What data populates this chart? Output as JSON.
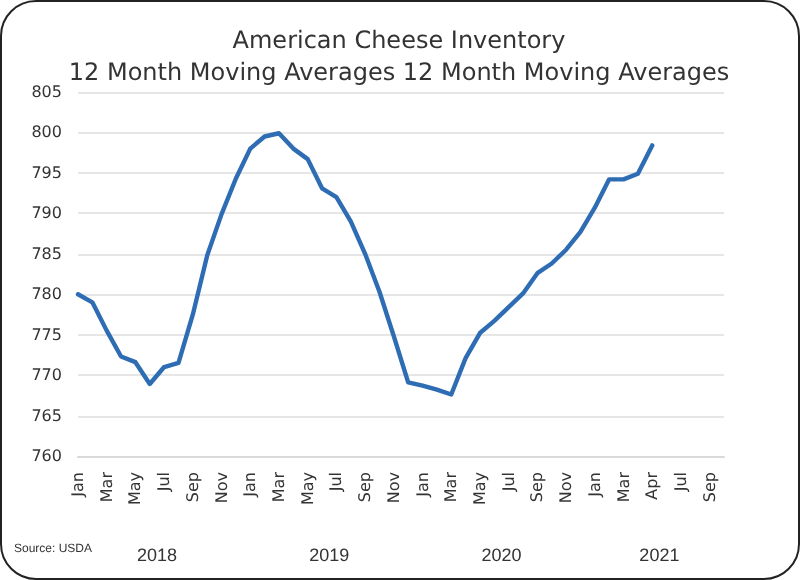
{
  "chart_data": {
    "type": "line",
    "title": "American Cheese Inventory\n12 Month Moving Averages 12 Month Moving Averages",
    "categories": [
      "Jan",
      null,
      "Mar",
      null,
      "May",
      null,
      "Jul",
      null,
      "Sep",
      null,
      "Nov",
      null,
      "Jan",
      null,
      "Mar",
      null,
      "May",
      null,
      "Jul",
      null,
      "Sep",
      null,
      "Nov",
      null,
      "Jan",
      null,
      "Mar",
      null,
      "May",
      null,
      "Jul",
      null,
      "Sep",
      null,
      "Nov",
      null,
      "Jan",
      null,
      "Mar",
      null,
      "Apr",
      null,
      "Jul",
      null,
      "Sep",
      null
    ],
    "series": [
      {
        "color": "#2e6db4",
        "values": [
          780,
          779,
          775.5,
          772.3,
          771.6,
          768.9,
          771,
          771.5,
          777.5,
          784.8,
          789.9,
          794.3,
          798,
          799.5,
          799.9,
          798,
          796.7,
          793.1,
          792,
          789,
          785,
          780.3,
          774.8,
          769.1,
          768.7,
          768.2,
          767.6,
          772.1,
          775.2,
          776.7,
          778.4,
          780.1,
          782.6,
          783.8,
          785.5,
          787.7,
          790.7,
          794.2,
          794.2,
          794.9,
          798.4,
          null,
          null,
          null,
          null,
          null
        ]
      }
    ],
    "ylim": [
      760,
      805
    ],
    "yticks": [
      760,
      765,
      770,
      775,
      780,
      785,
      790,
      795,
      800,
      805
    ],
    "grid": "y",
    "marker": "none",
    "line_style": "solid",
    "annotations": [
      "Source: USDA",
      "2018",
      "2019",
      "2020",
      "2021"
    ]
  }
}
